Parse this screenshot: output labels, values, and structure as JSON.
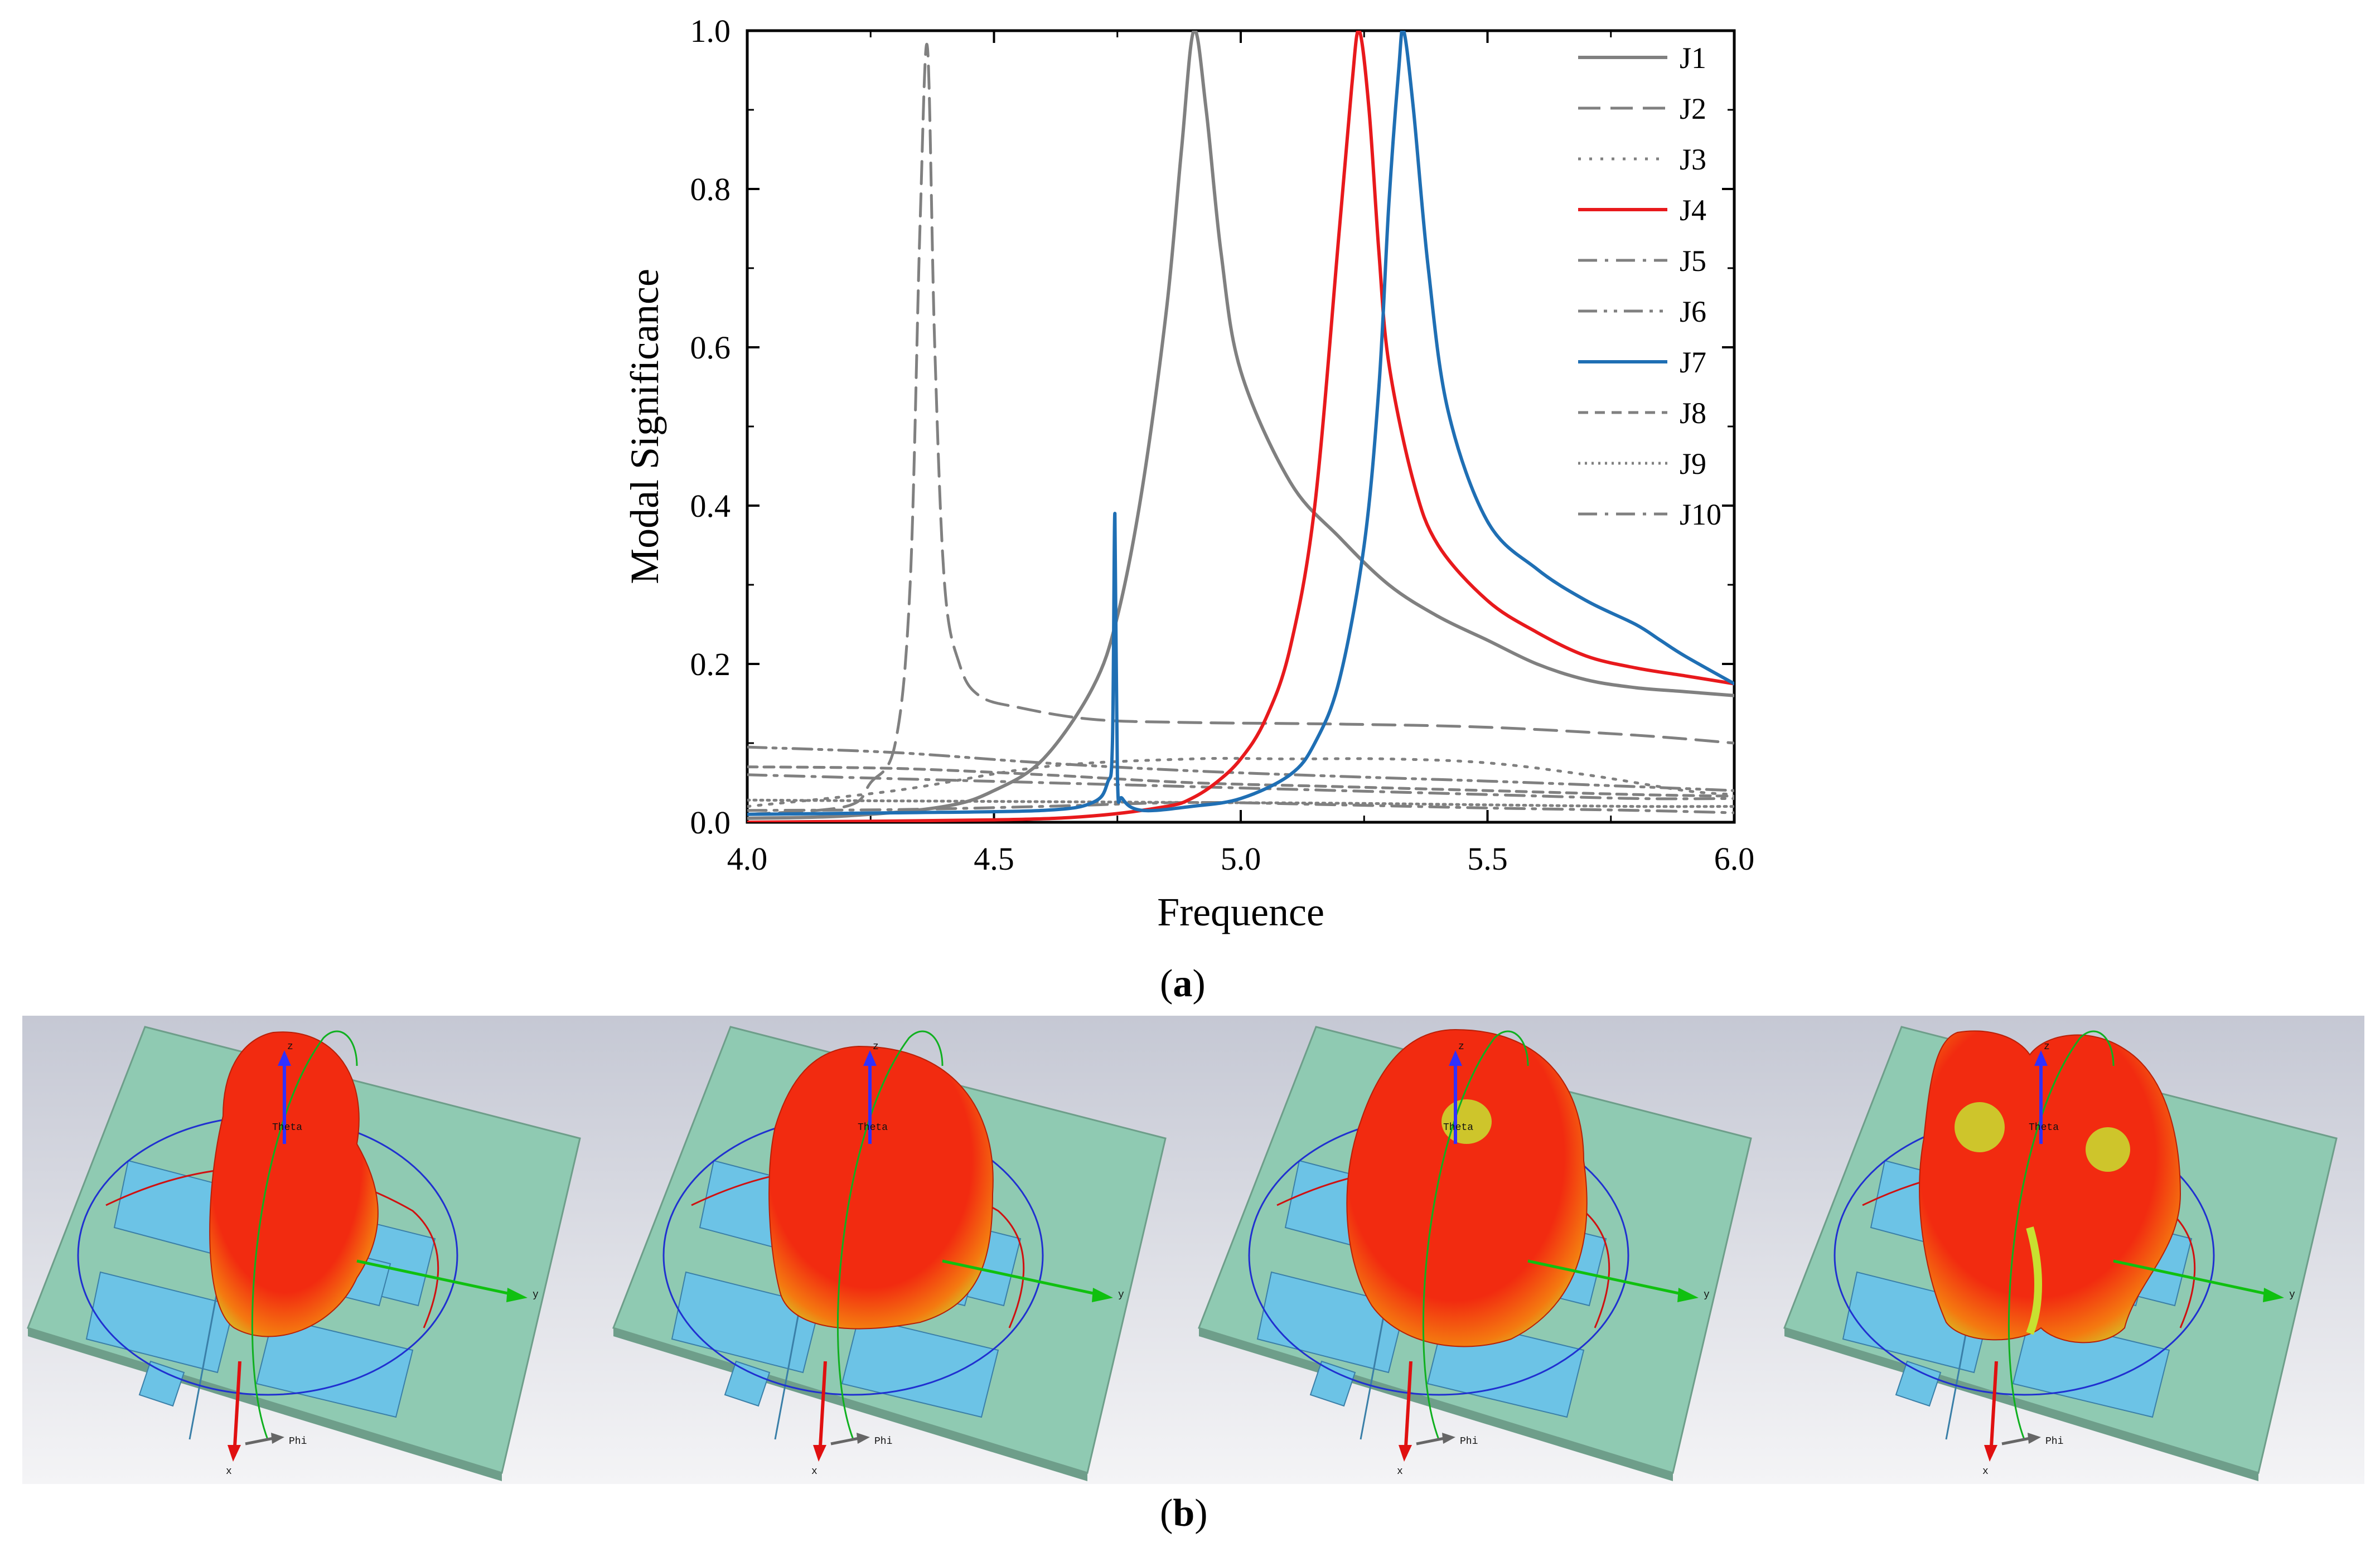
{
  "chart_data": {
    "type": "line",
    "xlabel": "Frequence",
    "ylabel": "Modal Significance",
    "xlim": [
      4.0,
      6.0
    ],
    "ylim": [
      0.0,
      1.0
    ],
    "xticks": [
      "4.0",
      "4.5",
      "5.0",
      "5.5",
      "6.0"
    ],
    "yticks": [
      "0.0",
      "0.2",
      "0.4",
      "0.6",
      "0.8",
      "1.0"
    ],
    "legend_position": "top-right",
    "series": [
      {
        "name": "J1",
        "color": "#808080",
        "dash": "solid",
        "x": [
          4.0,
          4.2,
          4.4,
          4.5,
          4.6,
          4.7,
          4.75,
          4.8,
          4.85,
          4.88,
          4.905,
          4.93,
          4.96,
          5.0,
          5.1,
          5.2,
          5.3,
          5.4,
          5.5,
          5.6,
          5.7,
          5.8,
          5.9,
          6.0
        ],
        "y": [
          0.005,
          0.008,
          0.02,
          0.04,
          0.08,
          0.17,
          0.26,
          0.42,
          0.65,
          0.85,
          1.0,
          0.9,
          0.72,
          0.57,
          0.43,
          0.36,
          0.3,
          0.26,
          0.23,
          0.2,
          0.18,
          0.17,
          0.165,
          0.16
        ]
      },
      {
        "name": "J2",
        "color": "#808080",
        "dash": "longdash",
        "x": [
          4.0,
          4.2,
          4.25,
          4.3,
          4.33,
          4.35,
          4.365,
          4.38,
          4.4,
          4.43,
          4.47,
          4.55,
          4.7,
          4.9,
          5.2,
          5.5,
          5.8,
          6.0
        ],
        "y": [
          0.01,
          0.02,
          0.05,
          0.1,
          0.3,
          0.75,
          0.98,
          0.6,
          0.3,
          0.2,
          0.16,
          0.145,
          0.13,
          0.126,
          0.124,
          0.12,
          0.11,
          0.1
        ]
      },
      {
        "name": "J3",
        "color": "#808080",
        "dash": "dot",
        "x": [
          4.0,
          4.3,
          4.6,
          4.9,
          5.1,
          5.3,
          5.5,
          5.7,
          5.9,
          6.0
        ],
        "y": [
          0.02,
          0.04,
          0.07,
          0.08,
          0.08,
          0.08,
          0.075,
          0.06,
          0.04,
          0.035
        ]
      },
      {
        "name": "J4",
        "color": "#e8191c",
        "dash": "solid",
        "x": [
          4.0,
          4.5,
          4.7,
          4.85,
          4.9,
          4.95,
          5.0,
          5.05,
          5.1,
          5.15,
          5.2,
          5.225,
          5.24,
          5.26,
          5.28,
          5.3,
          5.35,
          5.4,
          5.5,
          5.6,
          5.7,
          5.8,
          5.9,
          6.0
        ],
        "y": [
          0.0,
          0.003,
          0.008,
          0.02,
          0.03,
          0.05,
          0.08,
          0.13,
          0.22,
          0.4,
          0.75,
          0.93,
          1.0,
          0.9,
          0.72,
          0.58,
          0.43,
          0.35,
          0.28,
          0.24,
          0.21,
          0.195,
          0.185,
          0.175
        ]
      },
      {
        "name": "J5",
        "color": "#808080",
        "dash": "dashdot",
        "x": [
          4.0,
          4.3,
          4.6,
          4.9,
          5.2,
          5.5,
          5.8,
          6.0
        ],
        "y": [
          0.06,
          0.055,
          0.05,
          0.045,
          0.04,
          0.035,
          0.03,
          0.03
        ]
      },
      {
        "name": "J6",
        "color": "#808080",
        "dash": "dashdotdot",
        "x": [
          4.0,
          4.3,
          4.6,
          4.9,
          5.2,
          5.5,
          5.8,
          6.0
        ],
        "y": [
          0.095,
          0.088,
          0.075,
          0.065,
          0.058,
          0.052,
          0.045,
          0.04
        ]
      },
      {
        "name": "J7",
        "color": "#1f6fb4",
        "dash": "solid",
        "x": [
          4.0,
          4.3,
          4.6,
          4.7,
          4.73,
          4.74,
          4.745,
          4.75,
          4.76,
          4.8,
          4.9,
          5.0,
          5.1,
          5.15,
          5.2,
          5.25,
          5.28,
          5.3,
          5.32,
          5.33,
          5.35,
          5.38,
          5.42,
          5.5,
          5.6,
          5.7,
          5.8,
          5.85,
          5.9,
          6.0
        ],
        "y": [
          0.01,
          0.012,
          0.015,
          0.025,
          0.05,
          0.1,
          0.39,
          0.06,
          0.03,
          0.015,
          0.02,
          0.03,
          0.06,
          0.1,
          0.18,
          0.35,
          0.55,
          0.78,
          0.95,
          1.0,
          0.9,
          0.7,
          0.52,
          0.38,
          0.32,
          0.28,
          0.25,
          0.23,
          0.21,
          0.175
        ]
      },
      {
        "name": "J8",
        "color": "#808080",
        "dash": "shortdash",
        "x": [
          4.0,
          4.3,
          4.6,
          4.9,
          5.2,
          5.5,
          5.8,
          6.0
        ],
        "y": [
          0.07,
          0.068,
          0.06,
          0.05,
          0.045,
          0.04,
          0.035,
          0.033
        ]
      },
      {
        "name": "J9",
        "color": "#808080",
        "dash": "shortdot",
        "x": [
          4.0,
          4.3,
          4.6,
          4.9,
          5.2,
          5.5,
          5.8,
          6.0
        ],
        "y": [
          0.028,
          0.027,
          0.026,
          0.025,
          0.024,
          0.022,
          0.02,
          0.02
        ]
      },
      {
        "name": "J10",
        "color": "#808080",
        "dash": "dashdot",
        "x": [
          4.0,
          4.3,
          4.6,
          4.9,
          5.2,
          5.5,
          5.8,
          6.0
        ],
        "y": [
          0.015,
          0.016,
          0.02,
          0.025,
          0.022,
          0.018,
          0.015,
          0.012
        ]
      }
    ]
  },
  "captions": {
    "a": "a",
    "b": "b"
  },
  "patterns": [
    {
      "axis_z": "z",
      "axis_x": "x",
      "axis_y": "y",
      "theta": "Theta",
      "phi": "Phi"
    },
    {
      "axis_z": "z",
      "axis_x": "x",
      "axis_y": "y",
      "theta": "Theta",
      "phi": "Phi"
    },
    {
      "axis_z": "z",
      "axis_x": "x",
      "axis_y": "y",
      "theta": "Theta",
      "phi": "Phi"
    },
    {
      "axis_z": "z",
      "axis_x": "x",
      "axis_y": "y",
      "theta": "Theta",
      "phi": "Phi"
    }
  ],
  "colors": {
    "axis": "#000000",
    "board": "#8fcab2",
    "patch": "#6cc3e6",
    "lobe_red": "#f22b10",
    "lobe_orange": "#f47a10",
    "lobe_yellow": "#c8e030",
    "bg_top": "#c5c8d4",
    "bg_bottom": "#f4f4f6"
  }
}
